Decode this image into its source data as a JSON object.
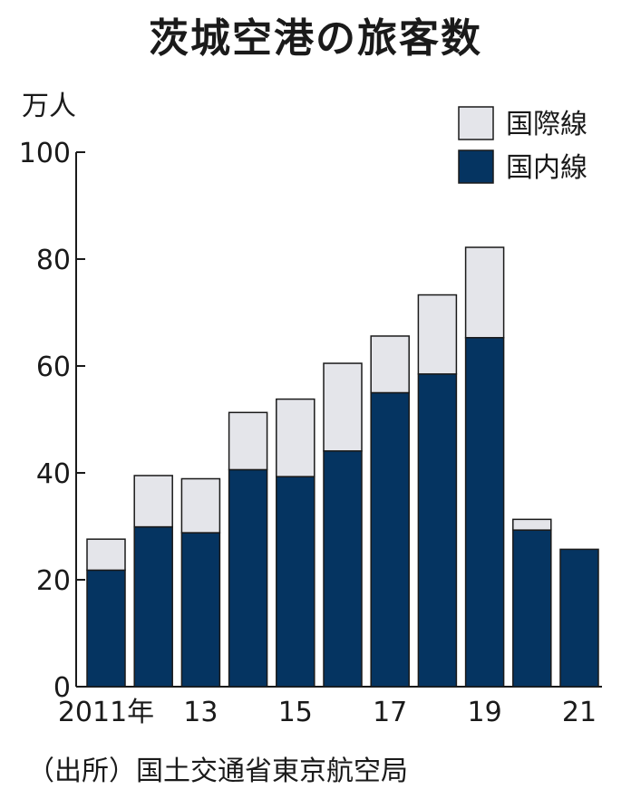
{
  "title": "茨城空港の旅客数",
  "unit_label": "万人",
  "source_note": "（出所）国土交通省東京航空局",
  "colors": {
    "domestic": "#053461",
    "international": "#e4e5ea",
    "stroke": "#1a1a1a"
  },
  "chart_data": {
    "type": "bar",
    "stacked": true,
    "title": "茨城空港の旅客数",
    "ylabel": "万人",
    "ylim": [
      0,
      100
    ],
    "yticks": [
      0,
      20,
      40,
      60,
      80,
      100
    ],
    "categories": [
      "2011",
      "2012",
      "2013",
      "2014",
      "2015",
      "2016",
      "2017",
      "2018",
      "2019",
      "2020",
      "2021"
    ],
    "xtick_labels": [
      "2011年",
      "",
      "13",
      "",
      "15",
      "",
      "17",
      "",
      "19",
      "",
      "21"
    ],
    "series": [
      {
        "name": "国内線",
        "values": [
          21.8,
          29.9,
          28.8,
          40.6,
          39.3,
          44.1,
          55.0,
          58.5,
          65.3,
          29.3,
          25.7
        ]
      },
      {
        "name": "国際線",
        "values": [
          5.8,
          9.6,
          10.1,
          10.7,
          14.5,
          16.4,
          10.6,
          14.8,
          16.9,
          2.0,
          0
        ]
      }
    ],
    "legend": {
      "position": "top-right",
      "order": [
        "国際線",
        "国内線"
      ]
    },
    "grid": false
  }
}
